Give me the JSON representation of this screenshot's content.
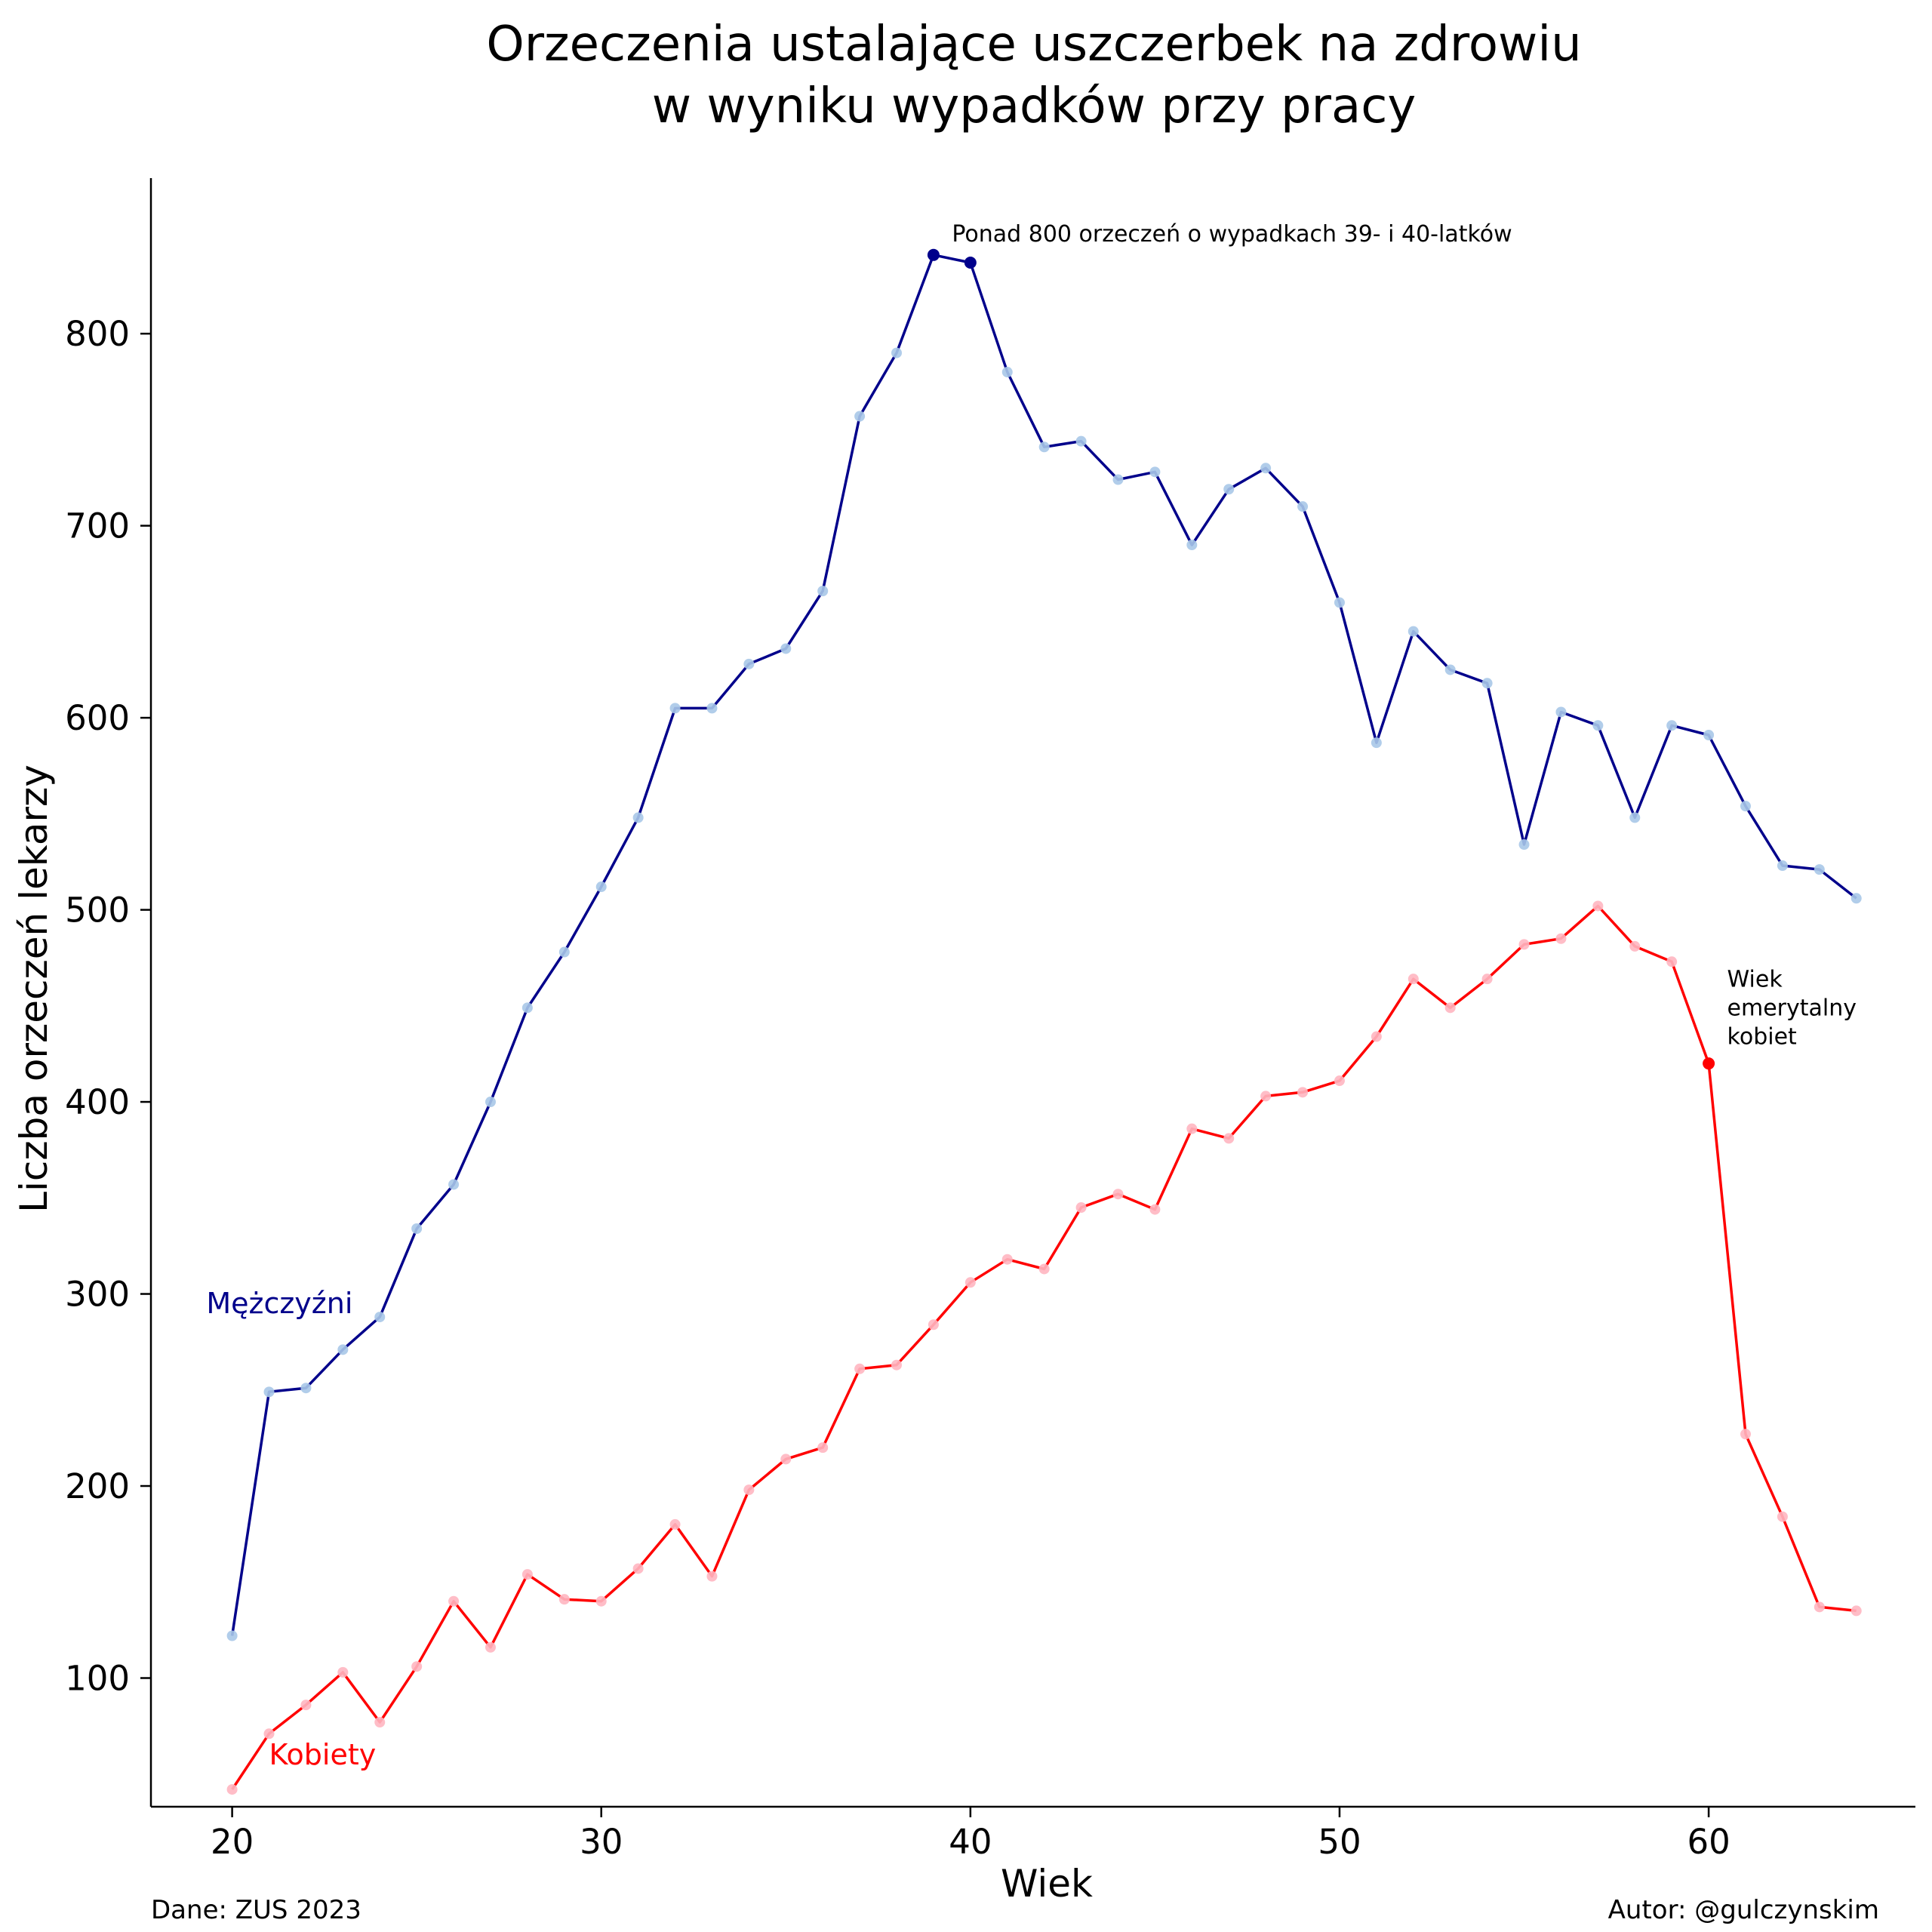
{
  "chart_data": {
    "type": "line",
    "title": [
      "Orzeczenia ustalające uszczerbek na zdrowiu",
      "w wyniku wypadków przy pracy"
    ],
    "xlabel": "Wiek",
    "ylabel": "Liczba orzeczeń lekarzy",
    "xlim": [
      17.8,
      65.6
    ],
    "ylim": [
      33,
      881
    ],
    "xticks": [
      20,
      30,
      40,
      50,
      60
    ],
    "yticks": [
      100,
      200,
      300,
      400,
      500,
      600,
      700,
      800
    ],
    "grid": false,
    "x": [
      20,
      21,
      22,
      23,
      24,
      25,
      26,
      27,
      28,
      29,
      30,
      31,
      32,
      33,
      34,
      35,
      36,
      37,
      38,
      39,
      40,
      41,
      42,
      43,
      44,
      45,
      46,
      47,
      48,
      49,
      50,
      51,
      52,
      53,
      54,
      55,
      56,
      57,
      58,
      59,
      60,
      61,
      62,
      63,
      64
    ],
    "series": [
      {
        "name": "Mężczyźni",
        "color": "#00008b",
        "marker_color": "#a8c8e8",
        "values": [
          122,
          249,
          251,
          271,
          288,
          334,
          357,
          400,
          449,
          478,
          512,
          548,
          605,
          605,
          628,
          636,
          666,
          757,
          790,
          841,
          837,
          780,
          741,
          744,
          724,
          728,
          690,
          719,
          730,
          710,
          660,
          587,
          645,
          625,
          618,
          534,
          603,
          596,
          548,
          596,
          591,
          554,
          523,
          521,
          506
        ],
        "label_x": 19.3,
        "label_y": 290
      },
      {
        "name": "Kobiety",
        "color": "#ff0000",
        "marker_color": "#ffb6c1",
        "values": [
          42,
          71,
          86,
          103,
          77,
          106,
          140,
          116,
          154,
          141,
          140,
          157,
          180,
          153,
          198,
          214,
          220,
          261,
          263,
          284,
          306,
          318,
          313,
          345,
          352,
          344,
          386,
          381,
          403,
          405,
          411,
          434,
          464,
          449,
          464,
          482,
          485,
          502,
          481,
          473,
          420,
          227,
          184,
          137,
          135
        ],
        "label_x": 21.0,
        "label_y": 55
      }
    ],
    "annotations": [
      {
        "text": [
          "Ponad 800 orzeczeń o wypadkach 39- i 40-latków"
        ],
        "x": 39.5,
        "y": 848,
        "points": [
          {
            "series": 0,
            "x": 39
          },
          {
            "series": 0,
            "x": 40
          }
        ]
      },
      {
        "text": [
          "Wiek",
          "emerytalny",
          "kobiet"
        ],
        "x": 60.5,
        "y": 460,
        "points": [
          {
            "series": 1,
            "x": 60
          }
        ]
      }
    ],
    "source": "Dane: ZUS 2023",
    "author": "Autor: @gulczynskim"
  }
}
